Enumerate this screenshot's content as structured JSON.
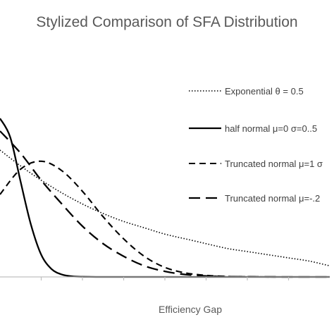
{
  "chart_data": {
    "type": "line",
    "title": "Stylized Comparison of SFA Distribution",
    "xlabel": "Efficiency Gap",
    "ylabel": "",
    "xlim": [
      0,
      8
    ],
    "ylim": [
      0,
      1
    ],
    "grid": false,
    "legend_placement": "right",
    "series": [
      {
        "name": "Exponential θ = 0.5",
        "style": "dotted",
        "x": [
          0,
          0.5,
          1,
          1.5,
          2,
          2.5,
          3,
          3.5,
          4,
          4.5,
          5,
          5.5,
          6,
          6.5,
          7,
          7.5,
          8
        ],
        "y": [
          0.8,
          0.7,
          0.61,
          0.53,
          0.46,
          0.4,
          0.35,
          0.31,
          0.27,
          0.24,
          0.21,
          0.18,
          0.16,
          0.14,
          0.12,
          0.1,
          0.07
        ]
      },
      {
        "name": "half normal μ=0 σ=0..5",
        "style": "solid",
        "x": [
          0,
          0.25,
          0.5,
          0.75,
          1,
          1.25,
          1.5,
          1.75,
          2,
          2.5,
          3,
          4,
          5,
          6,
          7,
          8
        ],
        "y": [
          1.0,
          0.88,
          0.6,
          0.33,
          0.14,
          0.05,
          0.015,
          0.004,
          0.001,
          0,
          0,
          0,
          0,
          0,
          0,
          0
        ]
      },
      {
        "name": "Truncated normal μ=1 σ",
        "style": "dashed",
        "x": [
          0,
          0.5,
          1,
          1.5,
          2,
          2.5,
          3,
          3.5,
          4,
          4.5,
          5,
          5.5,
          6,
          6.5,
          7,
          8
        ],
        "y": [
          0.52,
          0.68,
          0.73,
          0.67,
          0.54,
          0.38,
          0.24,
          0.13,
          0.06,
          0.025,
          0.01,
          0.003,
          0.001,
          0,
          0,
          0
        ]
      },
      {
        "name": "Truncated normal μ=-.2",
        "style": "longdash",
        "x": [
          0,
          0.5,
          1,
          1.5,
          2,
          2.5,
          3,
          3.5,
          4,
          4.5,
          5,
          5.5,
          6,
          7,
          8
        ],
        "y": [
          0.92,
          0.78,
          0.61,
          0.46,
          0.32,
          0.21,
          0.13,
          0.07,
          0.035,
          0.015,
          0.006,
          0.002,
          0.001,
          0,
          0
        ]
      }
    ]
  }
}
